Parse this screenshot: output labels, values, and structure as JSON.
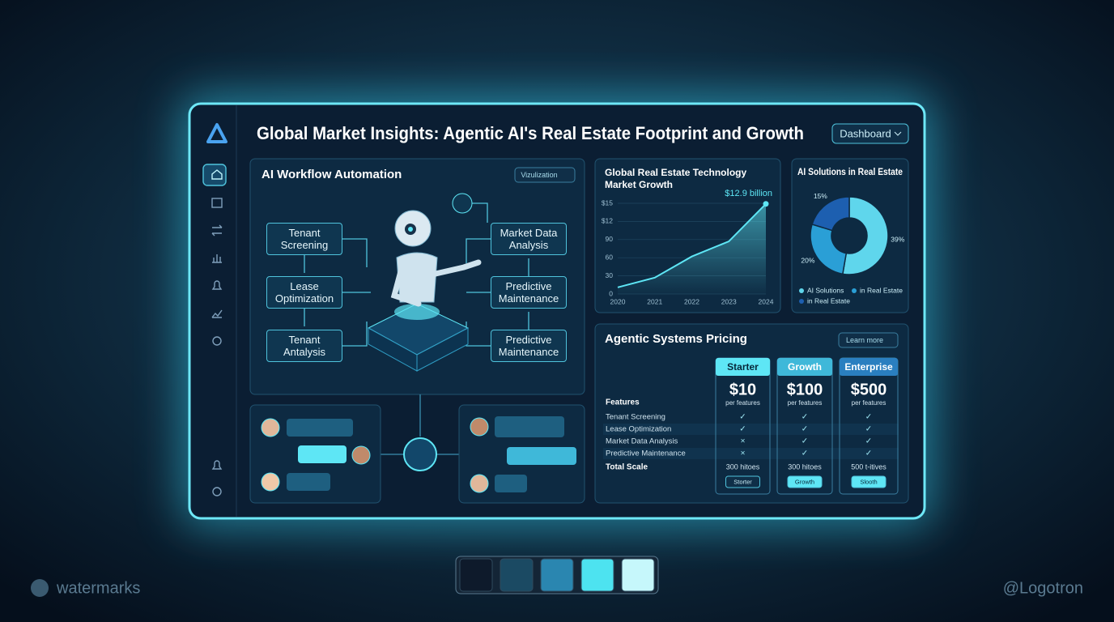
{
  "header": {
    "title": "Global Market Insights: Agentic AI's Real Estate Footprint and Growth",
    "button": "Dashboard"
  },
  "workflow": {
    "title": "AI Workflow Automation",
    "dropdown": "Vizulization",
    "nodes": [
      "Tenant Screening",
      "Lease Optimization",
      "Tenant Antalysis",
      "Market Data Analysis",
      "Predictive Maintenance",
      "Predictive Maintenance"
    ]
  },
  "chart_data": [
    {
      "type": "line",
      "title": "Global Real Estate Technology Market Growth",
      "annotation": "$12.9 billion",
      "x": [
        2020,
        2021,
        2022,
        2023,
        2024
      ],
      "values": [
        1.1,
        2.7,
        6.2,
        8.7,
        14.9
      ],
      "color": "#5ee6f5",
      "xlim": [
        2020,
        2024
      ],
      "xticks": [
        2020,
        2021,
        2022,
        2023,
        2024
      ],
      "ylim": [
        0,
        15
      ],
      "yticks": [
        0,
        {
          "value": 3,
          "label": "30"
        },
        {
          "value": 6,
          "label": "60"
        },
        {
          "value": 9,
          "label": "90"
        },
        {
          "value": 12,
          "label": "$12"
        },
        {
          "value": 15,
          "label": "$15"
        }
      ],
      "grid": true
    },
    {
      "type": "pie",
      "title": "AI Solutions in Real Estate",
      "categories": [
        "AI Solutions",
        "in Real Estate",
        "in Real Estate"
      ],
      "values": [
        39,
        20,
        15
      ],
      "value_labels": [
        "39%",
        "20%",
        "15%"
      ],
      "colors": [
        "#5fd6ec",
        "#2a9fd6",
        "#1d5fb0"
      ]
    }
  ],
  "pricing": {
    "title": "Agentic Systems Pricing",
    "button": "Learn more",
    "features_header": "Features",
    "total_header": "Total Scale",
    "features": [
      "Tenant Screening",
      "Lease Optimization",
      "Market Data Analysis",
      "Predictive Maintenance"
    ],
    "plans": [
      {
        "name": "Starter",
        "price": "$10",
        "unit": "per features",
        "cells": [
          "✓",
          "✓",
          "×",
          "×"
        ],
        "total": "300 hitoes",
        "button": "Storter",
        "color": "#5ee6f5"
      },
      {
        "name": "Growth",
        "price": "$100",
        "unit": "per features",
        "cells": [
          "✓",
          "✓",
          "✓",
          "✓"
        ],
        "total": "300 hitoes",
        "button": "Growth",
        "color": "#3fb8d9"
      },
      {
        "name": "Enterprise",
        "price": "$500",
        "unit": "per features",
        "cells": [
          "✓",
          "✓",
          "✓",
          "✓"
        ],
        "total": "500 t-itives",
        "button": "Slooth",
        "color": "#2a7fc0"
      }
    ]
  },
  "palette": [
    "#0e1a2b",
    "#1b4a63",
    "#2a86b0",
    "#4de3f0",
    "#c6f7fb"
  ],
  "watermark": {
    "left": "watermarks",
    "right": "@Logotron"
  }
}
